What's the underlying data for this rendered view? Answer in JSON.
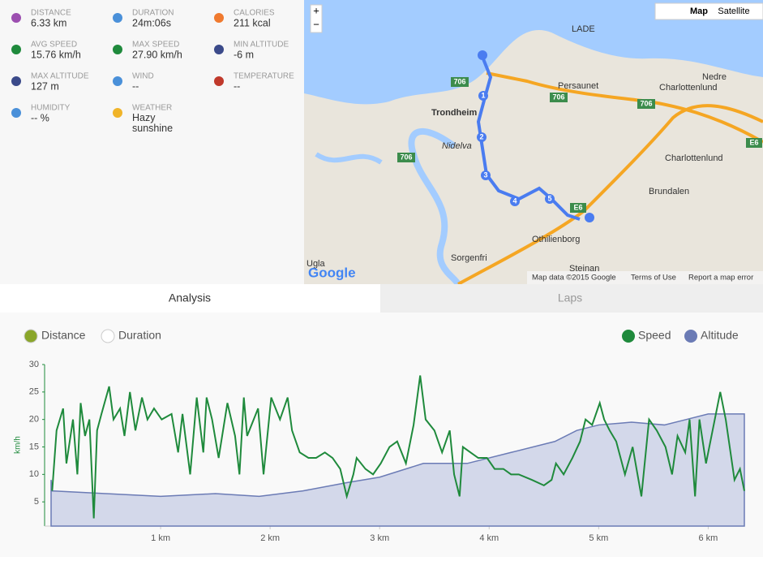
{
  "stats": [
    {
      "label": "DISTANCE",
      "value": "6.33 km"
    },
    {
      "label": "DURATION",
      "value": "24m:06s"
    },
    {
      "label": "CALORIES",
      "value": "211 kcal"
    },
    {
      "label": "AVG SPEED",
      "value": "15.76 km/h"
    },
    {
      "label": "MAX SPEED",
      "value": "27.90 km/h"
    },
    {
      "label": "MIN ALTITUDE",
      "value": "-6 m"
    },
    {
      "label": "MAX ALTITUDE",
      "value": "127 m"
    },
    {
      "label": "WIND",
      "value": "--"
    },
    {
      "label": "TEMPERATURE",
      "value": "--"
    },
    {
      "label": "HUMIDITY",
      "value": "-- %"
    },
    {
      "label": "WEATHER",
      "value": "Hazy sunshine"
    }
  ],
  "map": {
    "zoom_in": "+",
    "zoom_out": "−",
    "type_buttons": [
      "Map",
      "Satellite"
    ],
    "places": [
      "Trondheim",
      "Persaunet",
      "Nedre",
      "Charlottenlund",
      "Charlottenlund",
      "Brundalen",
      "Othilienborg",
      "Sorgenfri",
      "Steinan",
      "Nidelva",
      "LADE",
      "Ugla"
    ],
    "roads": [
      "706",
      "706",
      "706",
      "706",
      "E6",
      "E6"
    ],
    "route_markers": [
      "1",
      "2",
      "3",
      "4",
      "5"
    ],
    "logo": "Google",
    "footer": [
      "Map data ©2015 Google",
      "Terms of Use",
      "Report a map error"
    ]
  },
  "tabs": [
    "Analysis",
    "Laps"
  ],
  "chart_data": {
    "type": "line",
    "x_options": [
      {
        "label": "Distance",
        "checked": true
      },
      {
        "label": "Duration",
        "checked": false
      }
    ],
    "y_label": "km/h",
    "xlim": [
      0,
      6.33
    ],
    "ylim": [
      0,
      30
    ],
    "yticks": [
      5,
      10,
      15,
      20,
      25,
      30
    ],
    "xticks": [
      {
        "value": 1,
        "label": "1 km"
      },
      {
        "value": 2,
        "label": "2 km"
      },
      {
        "value": 3,
        "label": "3 km"
      },
      {
        "value": 4,
        "label": "4 km"
      },
      {
        "value": 5,
        "label": "5 km"
      },
      {
        "value": 6,
        "label": "6 km"
      }
    ],
    "series": [
      {
        "name": "Altitude",
        "color": "#6b7bb5",
        "fill": "#d3d8ea",
        "kind": "area",
        "x": [
          0,
          0.01,
          0.5,
          1,
          1.5,
          1.9,
          2.3,
          2.7,
          3.0,
          3.4,
          3.8,
          4.2,
          4.6,
          4.8,
          5.0,
          5.3,
          5.6,
          5.8,
          6.0,
          6.33
        ],
        "values": [
          9,
          7,
          6.5,
          6,
          6.5,
          6,
          7,
          8.5,
          9.5,
          12,
          12,
          14,
          16,
          18,
          19,
          19.5,
          19,
          20,
          21,
          21
        ]
      },
      {
        "name": "Speed",
        "color": "#1f8a3c",
        "kind": "line",
        "x": [
          0.01,
          0.05,
          0.11,
          0.14,
          0.2,
          0.24,
          0.27,
          0.31,
          0.35,
          0.39,
          0.42,
          0.46,
          0.53,
          0.57,
          0.63,
          0.67,
          0.72,
          0.77,
          0.83,
          0.88,
          0.94,
          1.01,
          1.1,
          1.16,
          1.2,
          1.27,
          1.33,
          1.39,
          1.42,
          1.47,
          1.53,
          1.61,
          1.68,
          1.72,
          1.76,
          1.79,
          1.89,
          1.94,
          2.01,
          2.09,
          2.16,
          2.2,
          2.27,
          2.35,
          2.42,
          2.5,
          2.57,
          2.64,
          2.7,
          2.76,
          2.79,
          2.87,
          2.94,
          3.01,
          3.09,
          3.16,
          3.24,
          3.31,
          3.37,
          3.42,
          3.5,
          3.57,
          3.64,
          3.68,
          3.73,
          3.76,
          3.83,
          3.9,
          3.98,
          4.05,
          4.13,
          4.2,
          4.27,
          4.39,
          4.5,
          4.57,
          4.61,
          4.68,
          4.76,
          4.83,
          4.88,
          4.94,
          5.01,
          5.05,
          5.1,
          5.16,
          5.24,
          5.31,
          5.39,
          5.46,
          5.53,
          5.61,
          5.67,
          5.72,
          5.79,
          5.83,
          5.88,
          5.92,
          5.98,
          6.04,
          6.11,
          6.16,
          6.24,
          6.29,
          6.33
        ],
        "values": [
          7,
          18,
          22,
          12,
          20,
          10,
          23,
          17,
          20,
          2,
          18,
          21,
          26,
          20,
          22,
          17,
          25,
          18,
          24,
          20,
          22,
          20,
          21,
          14,
          21,
          10,
          24,
          14,
          24,
          20,
          13,
          23,
          17,
          10,
          24,
          17,
          22,
          10,
          24,
          20,
          24,
          18,
          14,
          13,
          13,
          14,
          13,
          11,
          6,
          10,
          13,
          11,
          10,
          12,
          15,
          16,
          12,
          19,
          28,
          20,
          18,
          14,
          18,
          10,
          6,
          15,
          14,
          13,
          13,
          11,
          11,
          10,
          10,
          9,
          8,
          9,
          12,
          10,
          13,
          16,
          20,
          19,
          23,
          20,
          18,
          16,
          10,
          15,
          6,
          20,
          18,
          15,
          10,
          17,
          14,
          20,
          6,
          20,
          12,
          18,
          25,
          20,
          9,
          11,
          7
        ]
      }
    ]
  }
}
